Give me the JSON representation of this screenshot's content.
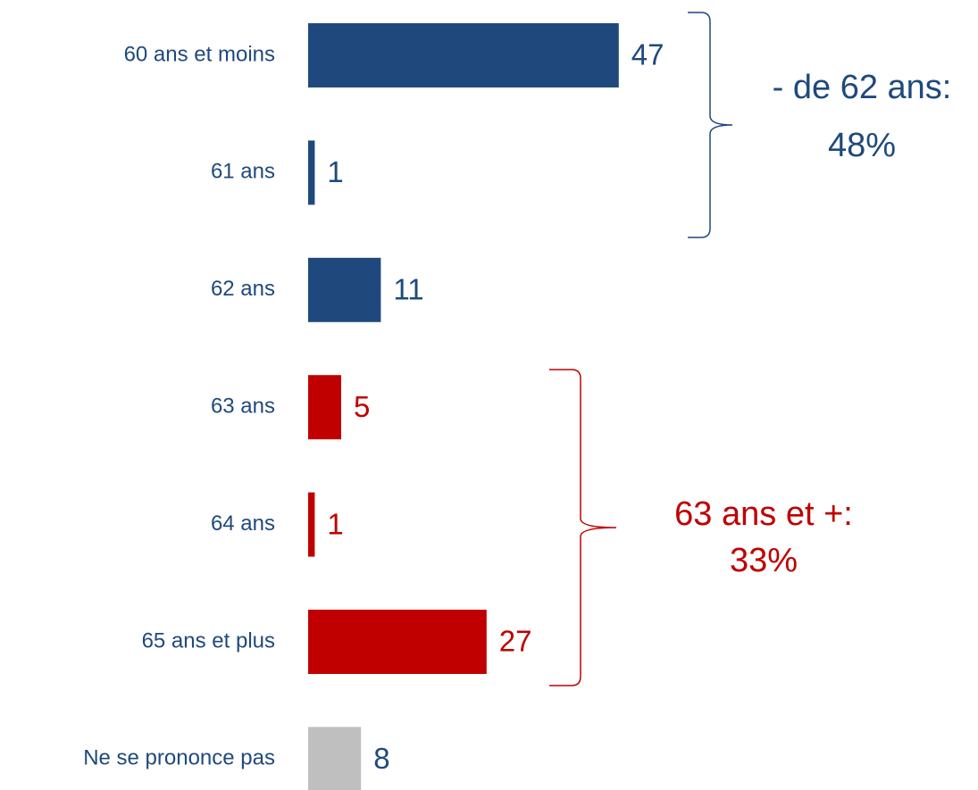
{
  "chart_data": {
    "type": "hbar",
    "categories": [
      "60 ans et moins",
      "61 ans",
      "62 ans",
      "63 ans",
      "64 ans",
      "65 ans et plus",
      "Ne se prononce pas"
    ],
    "values": [
      47,
      1,
      11,
      5,
      1,
      27,
      8
    ],
    "colors": [
      "#1f497d",
      "#1f497d",
      "#1f497d",
      "#c00000",
      "#c00000",
      "#c00000",
      "#bfbfbf"
    ],
    "value_label_colors": [
      "#1f497d",
      "#1f497d",
      "#1f497d",
      "#c00000",
      "#c00000",
      "#c00000",
      "#1f497d"
    ],
    "category_label_color": "#1f497d",
    "annotations": [
      {
        "lines": [
          "- de 62 ans:",
          "48%"
        ],
        "color": "#1f497d"
      },
      {
        "lines": [
          "63 ans et +:",
          "33%"
        ],
        "color": "#c00000"
      }
    ]
  }
}
